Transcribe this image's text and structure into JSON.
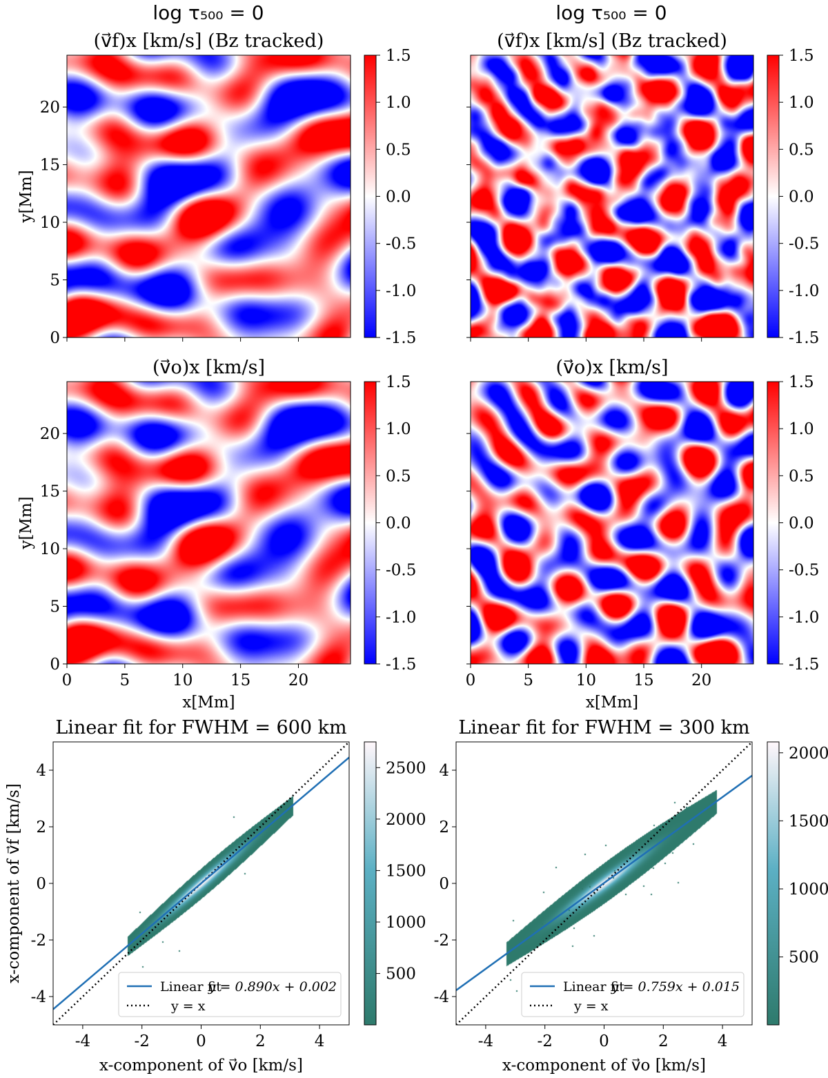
{
  "figure": {
    "column_titles": [
      "log τ₅₀₀ = 0",
      "log τ₅₀₀ = 0"
    ],
    "colors": {
      "map_low": "#0000ff",
      "map_mid": "#ffffff",
      "map_high": "#ff0000",
      "density_low": "#2e7a6c",
      "density_mid": "#5cb0c4",
      "density_high": "#fff7fb",
      "fit_line": "#1f6fb4",
      "identity_line": "#000000"
    }
  },
  "chart_data": [
    {
      "id": "vf-600",
      "type": "heatmap",
      "title": "(v⃗f)x [km/s] (Bz tracked)",
      "xlabel": "",
      "ylabel": "y[Mm]",
      "xlim": [
        0,
        24.5
      ],
      "ylim": [
        0,
        24.5
      ],
      "xticks": [
        0,
        5,
        10,
        15,
        20
      ],
      "yticks": [
        0,
        5,
        10,
        15,
        20
      ],
      "show_xtick_labels": false,
      "show_ytick_labels": true,
      "colorbar": {
        "min": -1.5,
        "max": 1.5,
        "ticks": [
          "1.5",
          "1.0",
          "0.5",
          "0.0",
          "-0.5",
          "-1.0",
          "-1.5"
        ]
      },
      "field": {
        "seed": 11,
        "scale": 1.0,
        "fine": 0.0
      }
    },
    {
      "id": "vf-300",
      "type": "heatmap",
      "title": "(v⃗f)x [km/s] (Bz tracked)",
      "xlabel": "",
      "ylabel": "",
      "xlim": [
        0,
        24.5
      ],
      "ylim": [
        0,
        24.5
      ],
      "xticks": [
        0,
        5,
        10,
        15,
        20
      ],
      "yticks": [
        0,
        5,
        10,
        15,
        20
      ],
      "show_xtick_labels": false,
      "show_ytick_labels": false,
      "colorbar": {
        "min": -1.5,
        "max": 1.5,
        "ticks": [
          "1.5",
          "1.0",
          "0.5",
          "0.0",
          "-0.5",
          "-1.0",
          "-1.5"
        ]
      },
      "field": {
        "seed": 23,
        "scale": 1.6,
        "fine": 0.45
      }
    },
    {
      "id": "vo-600",
      "type": "heatmap",
      "title": "(v⃗o)x [km/s]",
      "xlabel": "x[Mm]",
      "ylabel": "y[Mm]",
      "xlim": [
        0,
        24.5
      ],
      "ylim": [
        0,
        24.5
      ],
      "xticks": [
        0,
        5,
        10,
        15,
        20
      ],
      "yticks": [
        0,
        5,
        10,
        15,
        20
      ],
      "show_xtick_labels": true,
      "show_ytick_labels": true,
      "colorbar": {
        "min": -1.5,
        "max": 1.5,
        "ticks": [
          "1.5",
          "1.0",
          "0.5",
          "0.0",
          "-0.5",
          "-1.0",
          "-1.5"
        ]
      },
      "field": {
        "seed": 11,
        "scale": 1.0,
        "fine": 0.0
      }
    },
    {
      "id": "vo-300",
      "type": "heatmap",
      "title": "(v⃗o)x [km/s]",
      "xlabel": "x[Mm]",
      "ylabel": "",
      "xlim": [
        0,
        24.5
      ],
      "ylim": [
        0,
        24.5
      ],
      "xticks": [
        0,
        5,
        10,
        15,
        20
      ],
      "yticks": [
        0,
        5,
        10,
        15,
        20
      ],
      "show_xtick_labels": true,
      "show_ytick_labels": false,
      "colorbar": {
        "min": -1.5,
        "max": 1.5,
        "ticks": [
          "1.5",
          "1.0",
          "0.5",
          "0.0",
          "-0.5",
          "-1.0",
          "-1.5"
        ]
      },
      "field": {
        "seed": 23,
        "scale": 1.6,
        "fine": 0.0
      }
    },
    {
      "id": "fit-600",
      "type": "scatter",
      "title": "Linear fit for FWHM = 600 km",
      "xlabel": "x-component of v⃗o [km/s]",
      "ylabel": "x-component of v⃗f [km/s]",
      "xlim": [
        -5,
        5
      ],
      "ylim": [
        -5,
        5
      ],
      "xticks": [
        -4,
        -2,
        0,
        2,
        4
      ],
      "yticks": [
        -4,
        -2,
        0,
        2,
        4
      ],
      "fit": {
        "slope": 0.89,
        "intercept": 0.002
      },
      "legend": {
        "placement": "lower-right",
        "fit_label": "Linear fit",
        "fit_equation": "y = 0.890x + 0.002",
        "identity_label": "y = x"
      },
      "colorbar": {
        "min": 1,
        "max": 2750,
        "ticks": [
          500,
          1000,
          1500,
          2000,
          2500
        ]
      },
      "density": {
        "x_range": [
          -2.5,
          3.1
        ],
        "spread": 0.34,
        "bulge": 0.2,
        "outliers": 6
      }
    },
    {
      "id": "fit-300",
      "type": "scatter",
      "title": "Linear fit for FWHM = 300 km",
      "xlabel": "x-component of v⃗o [km/s]",
      "ylabel": "",
      "xlim": [
        -5,
        5
      ],
      "ylim": [
        -5,
        5
      ],
      "xticks": [
        -4,
        -2,
        0,
        2,
        4
      ],
      "yticks": [
        -4,
        -2,
        0,
        2,
        4
      ],
      "fit": {
        "slope": 0.759,
        "intercept": 0.015
      },
      "legend": {
        "placement": "lower-right",
        "fit_label": "Linear fit",
        "fit_equation": "y = 0.759x + 0.015",
        "identity_label": "y = x"
      },
      "colorbar": {
        "min": 1,
        "max": 2080,
        "ticks": [
          500,
          1000,
          1500,
          2000
        ]
      },
      "density": {
        "x_range": [
          -3.3,
          3.8
        ],
        "spread": 0.42,
        "bulge": 0.3,
        "outliers": 30
      }
    }
  ]
}
